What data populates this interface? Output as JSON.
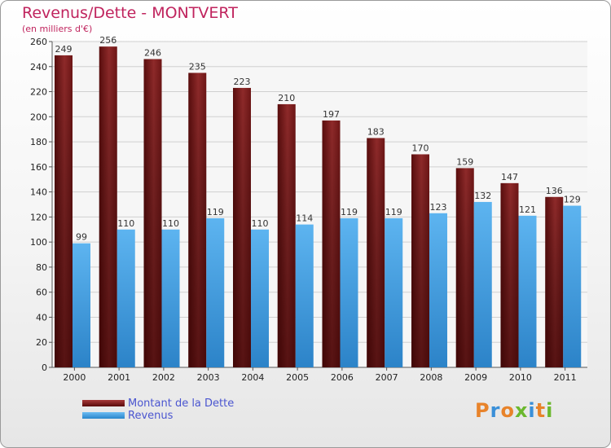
{
  "title": "Revenus/Dette - MONTVERT",
  "subtitle": "(en milliers d'€)",
  "logo": "Proxiti",
  "colors": {
    "dette": "#7a1a1a",
    "revenus": "#4ea6e6",
    "title": "#c0245e",
    "legend_text": "#4a55d0"
  },
  "chart_data": {
    "type": "bar",
    "title": "Revenus/Dette - MONTVERT",
    "ylabel": "(en milliers d'€)",
    "xlabel": "",
    "ylim": [
      0,
      260
    ],
    "yticks": [
      0,
      20,
      40,
      60,
      80,
      100,
      120,
      140,
      160,
      180,
      200,
      220,
      240,
      260
    ],
    "grid": true,
    "legend_position": "bottom-left",
    "categories": [
      "2000",
      "2001",
      "2002",
      "2003",
      "2004",
      "2005",
      "2006",
      "2007",
      "2008",
      "2009",
      "2010",
      "2011"
    ],
    "series": [
      {
        "name": "Montant de la Dette",
        "values": [
          249,
          256,
          246,
          235,
          223,
          210,
          197,
          183,
          170,
          159,
          147,
          136
        ]
      },
      {
        "name": "Revenus",
        "values": [
          99,
          110,
          110,
          119,
          110,
          114,
          119,
          119,
          123,
          132,
          121,
          129
        ]
      }
    ]
  }
}
